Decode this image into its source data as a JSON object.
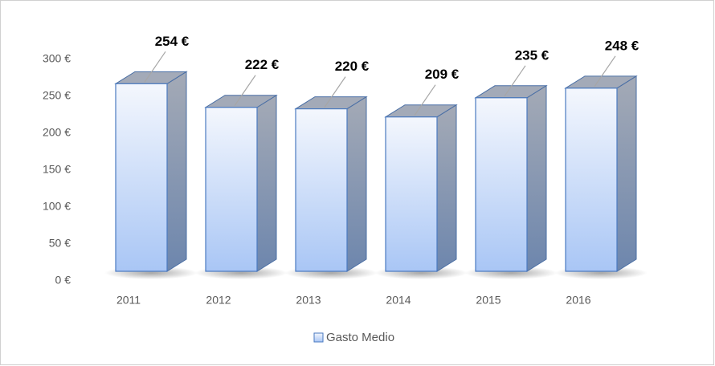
{
  "chart_data": {
    "type": "bar3d",
    "categories": [
      "2011",
      "2012",
      "2013",
      "2014",
      "2015",
      "2016"
    ],
    "series": [
      {
        "name": "Gasto Medio",
        "color": "#a9c6f5",
        "values": [
          254,
          222,
          220,
          209,
          235,
          248
        ],
        "value_labels": [
          "254 €",
          "222 €",
          "220 €",
          "209 €",
          "235 €",
          "248 €"
        ]
      }
    ],
    "ylim": [
      0,
      300
    ],
    "yticks": [
      {
        "value": 0,
        "label": "0 €"
      },
      {
        "value": 50,
        "label": "50 €"
      },
      {
        "value": 100,
        "label": "100 €"
      },
      {
        "value": 150,
        "label": "150 €"
      },
      {
        "value": 200,
        "label": "200 €"
      },
      {
        "value": 250,
        "label": "250 €"
      },
      {
        "value": 300,
        "label": "300 €"
      }
    ],
    "legend": "bottom"
  }
}
